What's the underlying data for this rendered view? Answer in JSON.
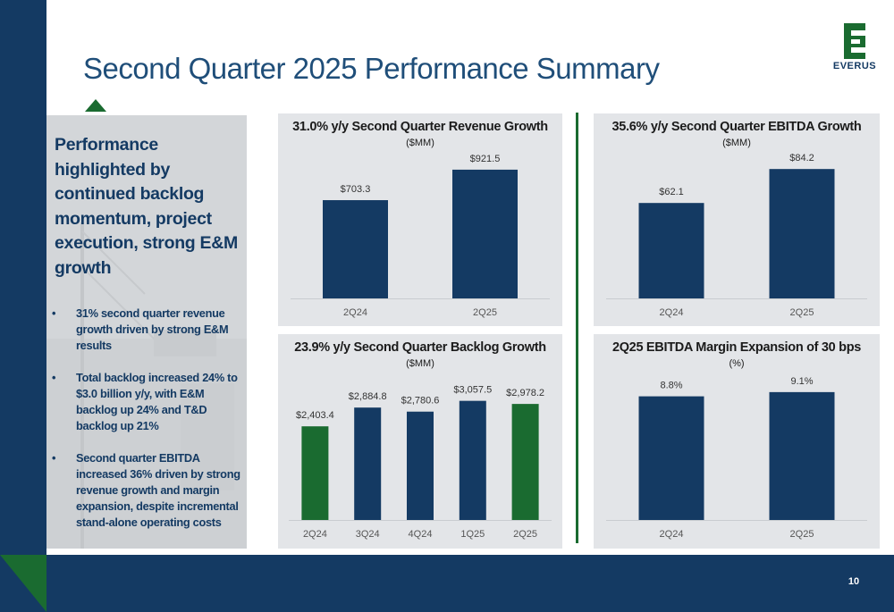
{
  "page": {
    "title": "Second Quarter 2025 Performance Summary",
    "page_number": "10",
    "logo_text": "EVERUS",
    "colors": {
      "navy": "#143a63",
      "green": "#1a6b30",
      "panel": "#e3e5e8",
      "baseline": "#c9ccd0"
    }
  },
  "side_panel": {
    "headline": "Performance highlighted by continued backlog momentum, project execution, strong E&M growth",
    "bullets": [
      "31% second quarter revenue growth driven by strong E&M results",
      "Total backlog increased 24% to $3.0 billion y/y, with E&M backlog up 24% and T&D backlog up 21%",
      "Second quarter EBITDA increased 36% driven by strong revenue growth and margin expansion, despite incremental stand-alone operating costs"
    ]
  },
  "chart_data": [
    {
      "type": "bar",
      "title": "31.0% y/y Second Quarter Revenue Growth",
      "subtitle": "($MM)",
      "categories": [
        "2Q24",
        "2Q25"
      ],
      "values": [
        703.3,
        921.5
      ],
      "labels": [
        "$703.3",
        "$921.5"
      ],
      "colors": [
        "#143a63",
        "#143a63"
      ],
      "ylim": [
        0,
        1100
      ],
      "grid": false,
      "legend": "none"
    },
    {
      "type": "bar",
      "title": "35.6% y/y Second Quarter EBITDA Growth",
      "subtitle": "($MM)",
      "categories": [
        "2Q24",
        "2Q25"
      ],
      "values": [
        62.1,
        84.2
      ],
      "labels": [
        "$62.1",
        "$84.2"
      ],
      "colors": [
        "#143a63",
        "#143a63"
      ],
      "ylim": [
        0,
        100
      ],
      "grid": false,
      "legend": "none"
    },
    {
      "type": "bar",
      "title": "23.9% y/y Second Quarter Backlog Growth",
      "subtitle": "($MM)",
      "categories": [
        "2Q24",
        "3Q24",
        "4Q24",
        "1Q25",
        "2Q25"
      ],
      "values": [
        2403.4,
        2884.8,
        2780.6,
        3057.5,
        2978.2
      ],
      "labels": [
        "$2,403.4",
        "$2,884.8",
        "$2,780.6",
        "$3,057.5",
        "$2,978.2"
      ],
      "colors": [
        "#1a6b30",
        "#143a63",
        "#143a63",
        "#143a63",
        "#1a6b30"
      ],
      "ylim": [
        0,
        3600
      ],
      "grid": false,
      "legend": "none"
    },
    {
      "type": "bar",
      "title": "2Q25 EBITDA Margin Expansion of 30 bps",
      "subtitle": "(%)",
      "categories": [
        "2Q24",
        "2Q25"
      ],
      "values": [
        8.8,
        9.1
      ],
      "labels": [
        "8.8%",
        "9.1%"
      ],
      "colors": [
        "#143a63",
        "#143a63"
      ],
      "ylim": [
        0,
        11
      ],
      "grid": false,
      "legend": "none"
    }
  ]
}
